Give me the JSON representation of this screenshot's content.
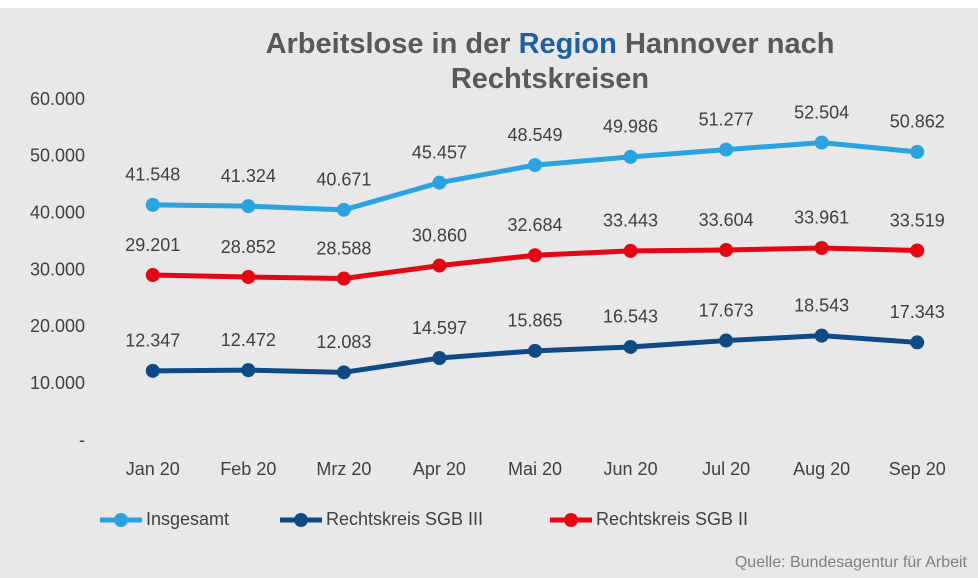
{
  "chart_data": {
    "type": "line",
    "title": [
      {
        "text": "Arbeitslose in der",
        "color": "#595959"
      },
      {
        "text": "Region",
        "color": "#1f5fa3"
      },
      {
        "text": "Hannover nach",
        "color": "#595959"
      },
      {
        "text": "Rechtskreisen",
        "color": "#595959"
      }
    ],
    "categories": [
      "Jan 20",
      "Feb 20",
      "Mrz 20",
      "Apr 20",
      "Mai 20",
      "Jun 20",
      "Jul 20",
      "Aug 20",
      "Sep 20"
    ],
    "series": [
      {
        "name": "Insgesamt",
        "color": "#2aa3e0",
        "values": [
          41548,
          41324,
          40671,
          45457,
          48549,
          49986,
          51277,
          52504,
          50862
        ],
        "value_labels": [
          "41.548",
          "41.324",
          "40.671",
          "45.457",
          "48.549",
          "49.986",
          "51.277",
          "52.504",
          "50.862"
        ]
      },
      {
        "name": "Rechtskreis SGB III",
        "color": "#0f4a85",
        "values": [
          12347,
          12472,
          12083,
          14597,
          15865,
          16543,
          17673,
          18543,
          17343
        ],
        "value_labels": [
          "12.347",
          "12.472",
          "12.083",
          "14.597",
          "15.865",
          "16.543",
          "17.673",
          "18.543",
          "17.343"
        ]
      },
      {
        "name": "Rechtskreis SGB II",
        "color": "#e30613",
        "values": [
          29201,
          28852,
          28588,
          30860,
          32684,
          33443,
          33604,
          33961,
          33519
        ],
        "value_labels": [
          "29.201",
          "28.852",
          "28.588",
          "30.860",
          "32.684",
          "33.443",
          "33.604",
          "33.961",
          "33.519"
        ]
      }
    ],
    "ylim": [
      0,
      60000
    ],
    "yticks": [
      {
        "value": 0,
        "label": "-"
      },
      {
        "value": 10000,
        "label": "10.000"
      },
      {
        "value": 20000,
        "label": "20.000"
      },
      {
        "value": 30000,
        "label": "30.000"
      },
      {
        "value": 40000,
        "label": "40.000"
      },
      {
        "value": 50000,
        "label": "50.000"
      },
      {
        "value": 60000,
        "label": "60.000"
      }
    ],
    "grid": false,
    "legend": "bottom",
    "source": "Quelle: Bundesagentur für Arbeit"
  }
}
